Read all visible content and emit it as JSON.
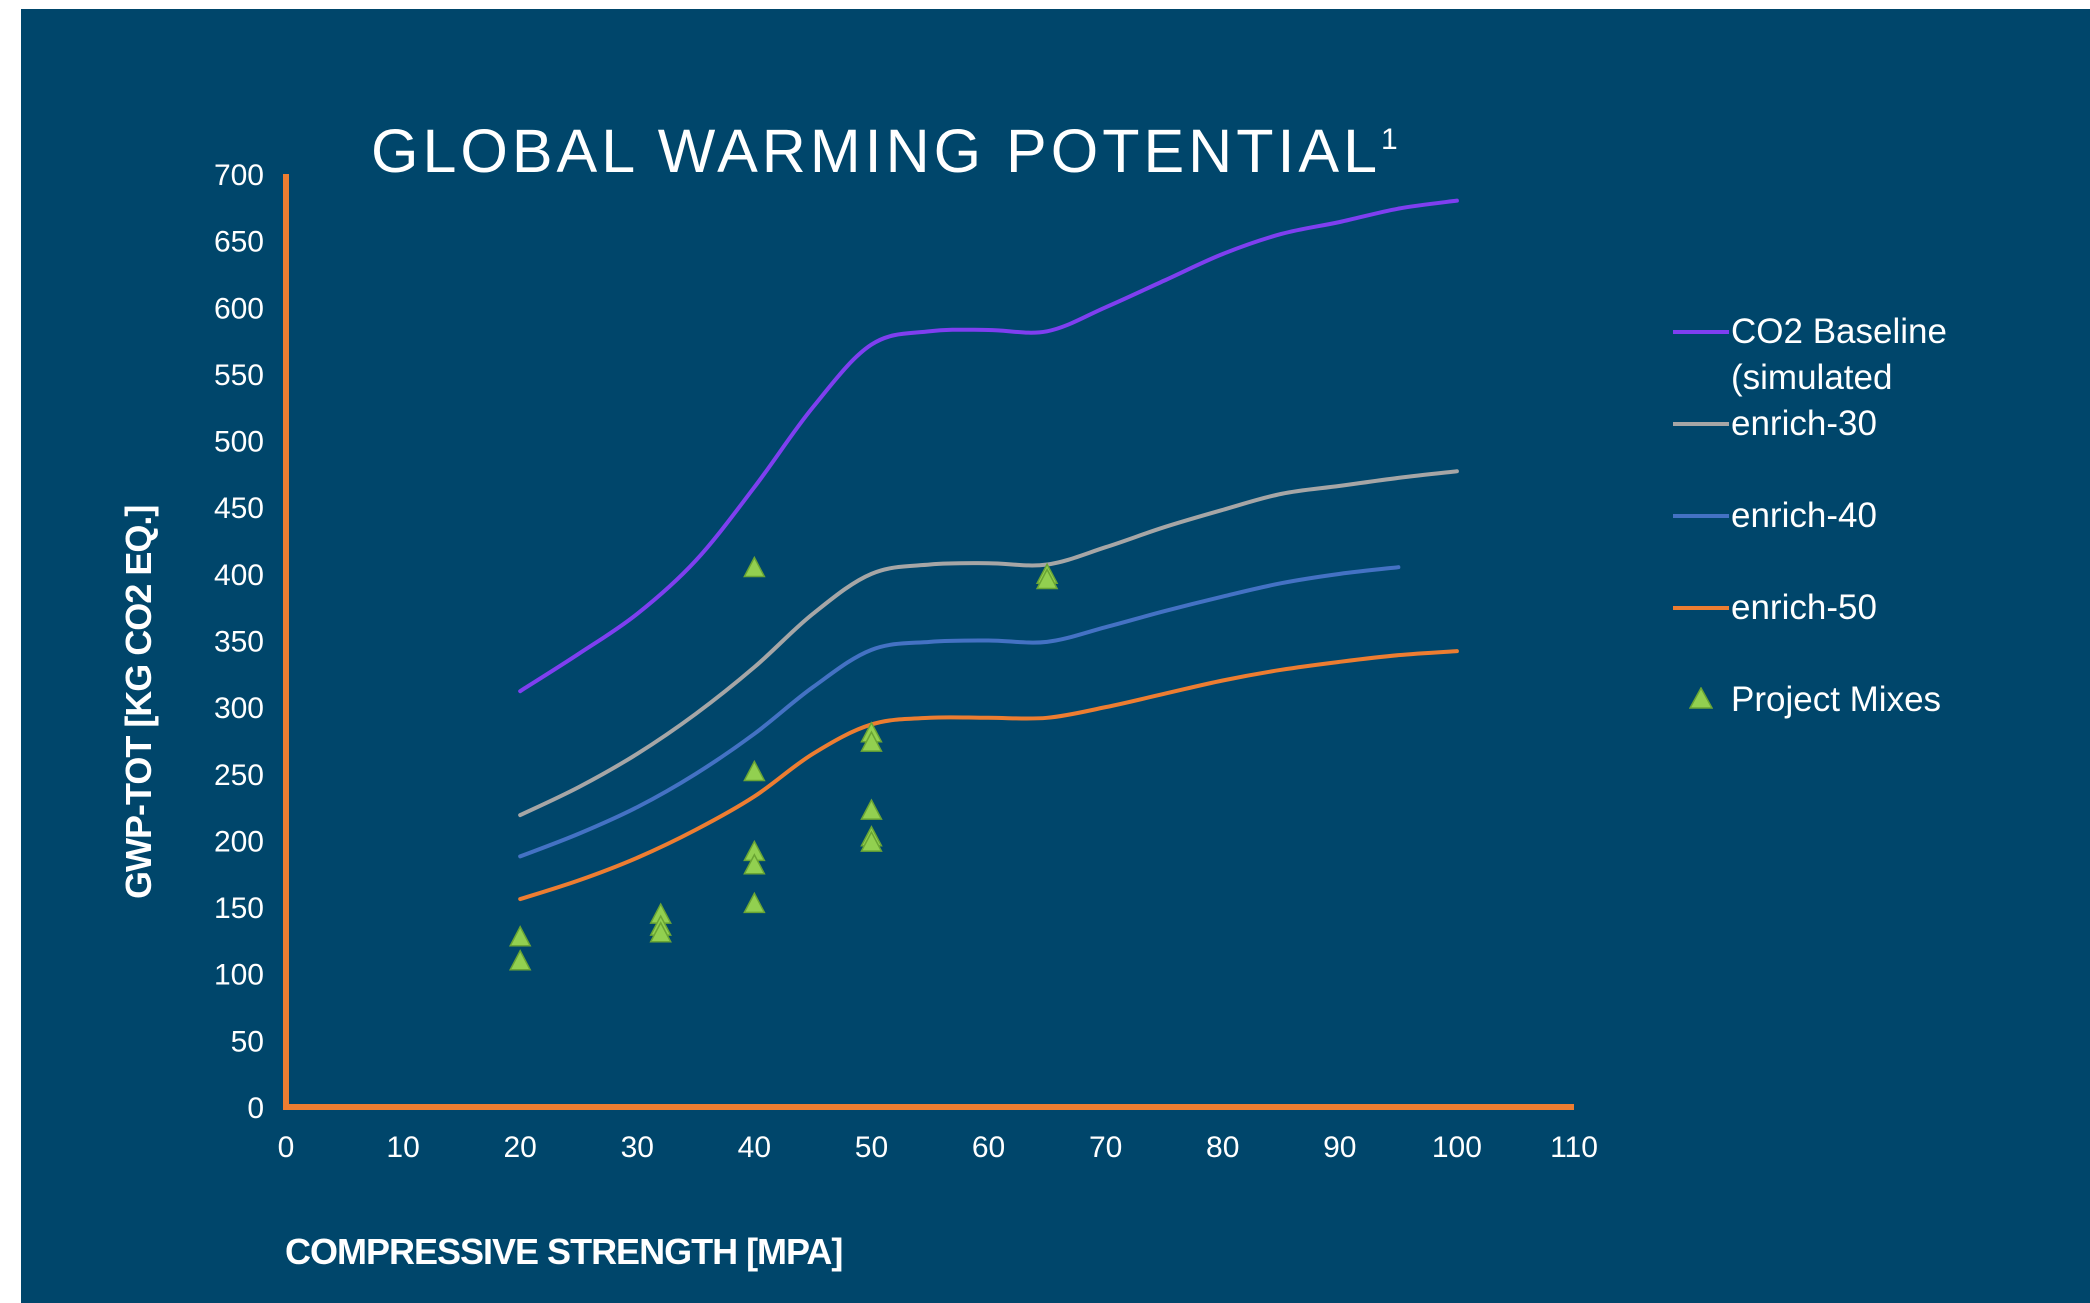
{
  "chart_data": {
    "type": "line",
    "title": "GLOBAL WARMING POTENTIAL",
    "title_superscript": "1",
    "xlabel": "COMPRESSIVE STRENGTH [MPA]",
    "ylabel": "GWP-TOT [KG CO2 EQ.]",
    "xlim": [
      0,
      110
    ],
    "ylim": [
      0,
      700
    ],
    "x_ticks": [
      "0",
      "10",
      "20",
      "30",
      "40",
      "50",
      "60",
      "70",
      "80",
      "90",
      "100",
      "110"
    ],
    "y_ticks": [
      "0",
      "50",
      "100",
      "150",
      "200",
      "250",
      "300",
      "350",
      "400",
      "450",
      "500",
      "550",
      "600",
      "650",
      "700"
    ],
    "grid": false,
    "legend_position": "right",
    "series": [
      {
        "name": "CO2 Baseline (simulated",
        "color": "#7f3ff0",
        "x": [
          20,
          25,
          30,
          35,
          40,
          45,
          50,
          55,
          60,
          65,
          70,
          75,
          80,
          85,
          90,
          95,
          100
        ],
        "y": [
          312,
          340,
          370,
          410,
          465,
          525,
          572,
          582,
          583,
          582,
          600,
          620,
          640,
          655,
          664,
          674,
          680
        ]
      },
      {
        "name": "enrich-30",
        "color": "#a6a6a6",
        "x": [
          20,
          25,
          30,
          35,
          40,
          45,
          50,
          55,
          60,
          65,
          70,
          75,
          80,
          85,
          90,
          95,
          100
        ],
        "y": [
          219,
          240,
          265,
          295,
          330,
          370,
          400,
          407,
          408,
          407,
          420,
          435,
          448,
          460,
          466,
          472,
          477
        ]
      },
      {
        "name": "enrich-40",
        "color": "#4472c4",
        "x": [
          20,
          25,
          30,
          35,
          40,
          45,
          50,
          55,
          60,
          65,
          70,
          75,
          80,
          85,
          90,
          95
        ],
        "y": [
          188,
          205,
          225,
          250,
          280,
          315,
          343,
          349,
          350,
          349,
          360,
          372,
          383,
          393,
          400,
          405
        ]
      },
      {
        "name": "enrich-50",
        "color": "#ed7d31",
        "x": [
          20,
          25,
          30,
          35,
          40,
          45,
          50,
          55,
          60,
          65,
          70,
          75,
          80,
          85,
          90,
          95,
          100
        ],
        "y": [
          156,
          170,
          187,
          208,
          233,
          265,
          287,
          292,
          292,
          292,
          300,
          310,
          320,
          328,
          334,
          339,
          342
        ]
      },
      {
        "name": "Project Mixes",
        "type": "scatter",
        "marker": "triangle",
        "color": "#92d050",
        "x": [
          20,
          20,
          32,
          32,
          32,
          40,
          40,
          40,
          40,
          40,
          50,
          50,
          50,
          50,
          50,
          65,
          65
        ],
        "y": [
          127,
          109,
          144,
          135,
          130,
          404,
          251,
          191,
          181,
          152,
          280,
          273,
          222,
          202,
          198,
          399,
          395
        ]
      }
    ]
  },
  "colors": {
    "background": "#00466b",
    "axis": "#ed7d31",
    "text": "#ffffff"
  }
}
